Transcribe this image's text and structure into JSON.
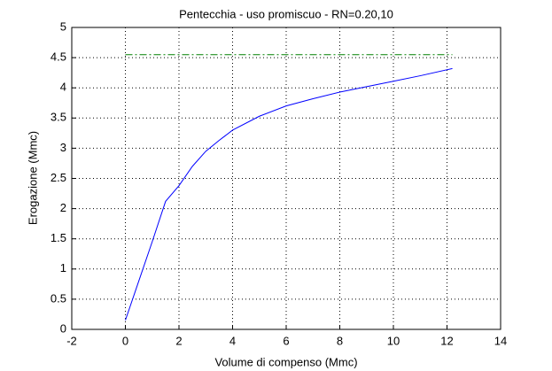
{
  "chart_data": {
    "type": "line",
    "title": "Pentecchia  -  uso promiscuo  -   RN=0.20,10",
    "xlabel": "Volume di compenso (Mmc)",
    "ylabel": "Erogazione (Mmc)",
    "xlim": [
      -2,
      14
    ],
    "xticks": [
      -2,
      0,
      2,
      4,
      6,
      8,
      10,
      12,
      14
    ],
    "ylim": [
      0,
      5
    ],
    "yticks": [
      0,
      0.5,
      1,
      1.5,
      2,
      2.5,
      3,
      3.5,
      4,
      4.5,
      5
    ],
    "grid": true,
    "series": [
      {
        "color": "#0000ff",
        "linestyle": "solid",
        "x": [
          0,
          0.5,
          1,
          1.5,
          2,
          2.5,
          3,
          3.5,
          4,
          5,
          6,
          7,
          8,
          9,
          10,
          11,
          12.2
        ],
        "values": [
          0.15,
          0.8,
          1.45,
          2.12,
          2.38,
          2.7,
          2.95,
          3.13,
          3.3,
          3.53,
          3.7,
          3.82,
          3.93,
          4.02,
          4.11,
          4.2,
          4.32
        ]
      },
      {
        "color": "#008000",
        "linestyle": "dashdot",
        "x": [
          0,
          12.2
        ],
        "values": [
          4.55,
          4.55
        ]
      }
    ]
  }
}
